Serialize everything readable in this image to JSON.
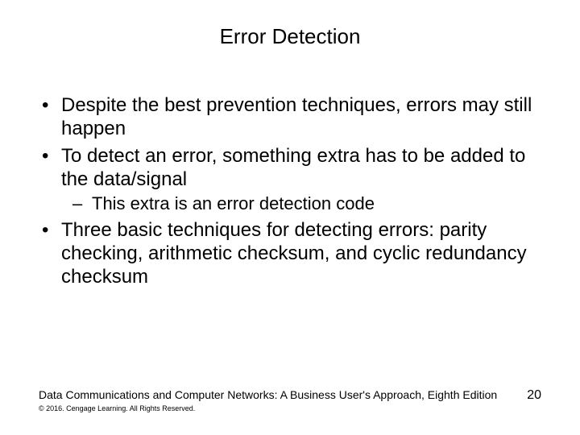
{
  "title": "Error Detection",
  "bullets": {
    "b1": "Despite the best prevention techniques, errors may still happen",
    "b2": "To detect an error, something extra has to be added to the data/signal",
    "b2_sub1": "This extra is an error detection code",
    "b3": "Three basic techniques for detecting errors: parity checking, arithmetic checksum, and cyclic redundancy checksum"
  },
  "footer": {
    "source": "Data Communications and Computer Networks: A Business User's Approach, Eighth Edition",
    "copyright": "© 2016. Cengage Learning. All Rights Reserved.",
    "page": "20"
  },
  "style": {
    "background_color": "#ffffff",
    "text_color": "#000000",
    "title_fontsize": 26,
    "body_fontsize": 24,
    "sub_fontsize": 22,
    "footer_fontsize": 14,
    "copyright_fontsize": 9
  }
}
